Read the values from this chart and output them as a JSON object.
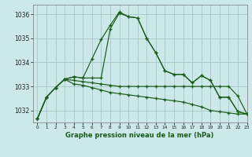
{
  "title": "Graphe pression niveau de la mer (hPa)",
  "bg_color": "#cce8e8",
  "grid_color": "#aacccc",
  "line_color": "#1a5c1a",
  "marker_color": "#1a5c1a",
  "xlim": [
    -0.5,
    23
  ],
  "ylim": [
    1031.5,
    1036.4
  ],
  "yticks": [
    1032,
    1033,
    1034,
    1035,
    1036
  ],
  "xticks": [
    0,
    1,
    2,
    3,
    4,
    5,
    6,
    7,
    8,
    9,
    10,
    11,
    12,
    13,
    14,
    15,
    16,
    17,
    18,
    19,
    20,
    21,
    22,
    23
  ],
  "series": [
    [
      1031.65,
      1032.55,
      1032.95,
      1033.3,
      1033.4,
      1033.35,
      1034.15,
      1034.95,
      1035.55,
      1036.1,
      1035.9,
      1035.85,
      1035.0,
      1034.4,
      1033.65,
      1033.5,
      1033.5,
      1033.15,
      1033.45,
      1033.25,
      1032.55,
      1032.55,
      1031.95,
      1031.85
    ],
    [
      1031.65,
      1032.55,
      1032.95,
      1033.3,
      1033.4,
      1033.35,
      1033.35,
      1033.35,
      1035.4,
      1036.05,
      1035.9,
      1035.85,
      1035.0,
      1034.4,
      1033.65,
      1033.5,
      1033.5,
      1033.15,
      1033.45,
      1033.25,
      1032.55,
      1032.55,
      1031.95,
      1031.85
    ],
    [
      1031.65,
      1032.55,
      1032.95,
      1033.3,
      1033.25,
      1033.2,
      1033.15,
      1033.1,
      1033.05,
      1033.0,
      1033.0,
      1033.0,
      1033.0,
      1033.0,
      1033.0,
      1033.0,
      1033.0,
      1033.0,
      1033.0,
      1033.0,
      1033.0,
      1033.0,
      1032.6,
      1031.85
    ],
    [
      1031.65,
      1032.55,
      1032.95,
      1033.3,
      1033.1,
      1033.05,
      1032.95,
      1032.85,
      1032.75,
      1032.7,
      1032.65,
      1032.6,
      1032.55,
      1032.5,
      1032.45,
      1032.4,
      1032.35,
      1032.25,
      1032.15,
      1032.0,
      1031.95,
      1031.9,
      1031.85,
      1031.85
    ]
  ]
}
